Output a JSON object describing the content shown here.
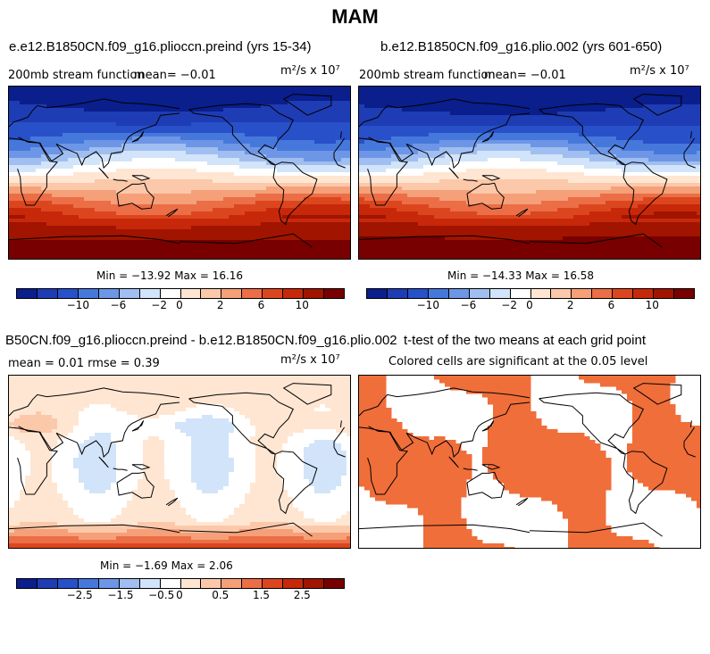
{
  "title": "MAM",
  "colors": {
    "map_scale": [
      "#0a1e8c",
      "#1e3cb4",
      "#2850c8",
      "#4678dc",
      "#6e96e6",
      "#a0bef0",
      "#d2e4fa",
      "#ffffff",
      "#ffe6d2",
      "#fcc8aa",
      "#f5a078",
      "#eb6e46",
      "#dc461e",
      "#c8280a",
      "#a01400",
      "#780000"
    ],
    "diff_scale": [
      "#0a1e8c",
      "#1e3cb4",
      "#2850c8",
      "#4678dc",
      "#6e96e6",
      "#a0bef0",
      "#d2e4fa",
      "#ffffff",
      "#ffe6d2",
      "#fcc8aa",
      "#f5a078",
      "#eb6e46",
      "#dc461e",
      "#c8280a",
      "#a01400",
      "#780000"
    ],
    "significant": "#f06e3a",
    "coast": "#000000"
  },
  "panels": [
    {
      "title": "e.e12.B1850CN.f09_g16.plioccn.preind (yrs 15-34)",
      "left_label": "200mb stream function",
      "mean_text": "mean=  −0.01",
      "unit": "m²/s x 10⁷",
      "minmax": "Min = −13.92 Max =  16.16",
      "ticks": [
        "−10",
        "−6",
        "−2",
        "0",
        "2",
        "6",
        "10"
      ]
    },
    {
      "title": "b.e12.B1850CN.f09_g16.plio.002 (yrs 601-650)",
      "left_label": "200mb stream function",
      "mean_text": "mean=  −0.01",
      "unit": "m²/s x 10⁷",
      "minmax": "Min = −14.33 Max =  16.58",
      "ticks": [
        "−10",
        "−6",
        "−2",
        "0",
        "2",
        "6",
        "10"
      ]
    },
    {
      "title": "B50CN.f09_g16.plioccn.preind - b.e12.B1850CN.f09_g16.plio.002",
      "left_label": "mean =   0.01     rmse =   0.39",
      "unit": "m²/s x 10⁷",
      "minmax": "Min = −1.69 Max =   2.06",
      "ticks": [
        "−2.5",
        "−1.5",
        "−0.5",
        "0",
        "0.5",
        "1.5",
        "2.5"
      ]
    },
    {
      "title": "t-test of the two means at each grid point",
      "subtitle": "Colored cells are significant at the 0.05 level"
    }
  ]
}
